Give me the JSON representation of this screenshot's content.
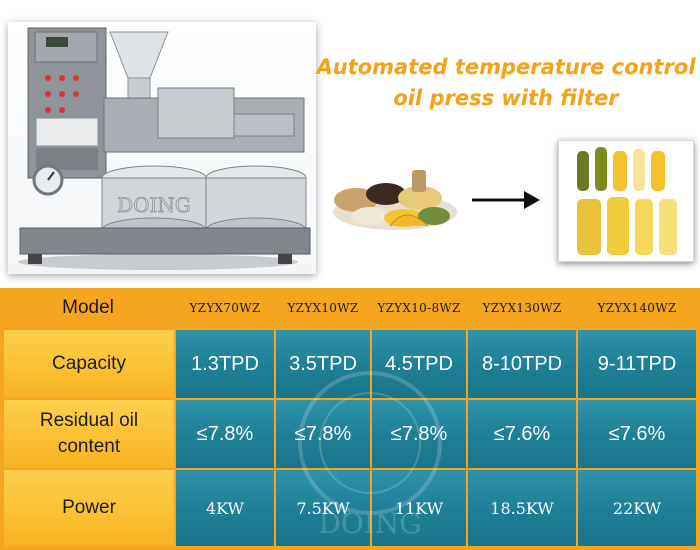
{
  "headline": {
    "line1": "Automated temperature control",
    "line2": "oil press with filter"
  },
  "images": {
    "machine": "oil-press-machine-photo",
    "machine_watermark": "DOING",
    "seeds": "oil-seeds-photo",
    "arrow": "right-arrow-icon",
    "bottles": "oil-bottles-photo"
  },
  "table": {
    "columns": [
      {
        "model": "YZYX70WZ",
        "capacity": "1.3TPD",
        "residual": "≤7.8%",
        "power": "4KW"
      },
      {
        "model": "YZYX10WZ",
        "capacity": "3.5TPD",
        "residual": "≤7.8%",
        "power": "7.5KW"
      },
      {
        "model": "YZYX10-8WZ",
        "capacity": "4.5TPD",
        "residual": "≤7.8%",
        "power": "11KW"
      },
      {
        "model": "YZYX130WZ",
        "capacity": "8-10TPD",
        "residual": "≤7.6%",
        "power": "18.5KW"
      },
      {
        "model": "YZYX140WZ",
        "capacity": "9-11TPD",
        "residual": "≤7.6%",
        "power": "22KW"
      }
    ],
    "row_labels": {
      "model": "Model",
      "capacity": "Capacity",
      "residual_line1": "Residual oil",
      "residual_line2": "content",
      "power": "Power"
    },
    "watermark": "DOING"
  },
  "colors": {
    "headline": "#f3a21d",
    "table_border": "#f6a51f",
    "label_cell": "#fcc43a",
    "value_cell": "#22849b"
  }
}
